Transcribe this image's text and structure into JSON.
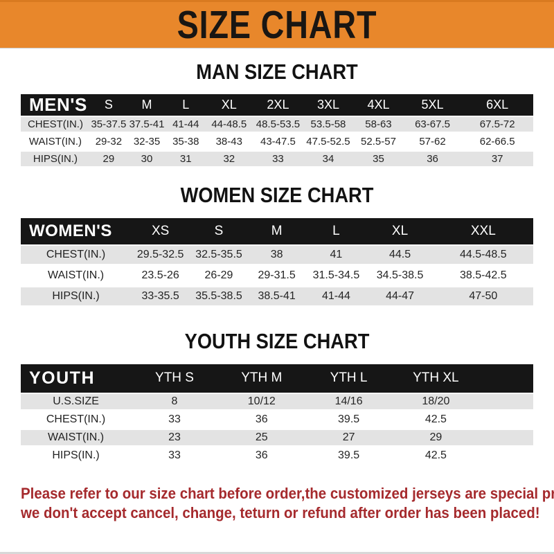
{
  "banner": {
    "title": "SIZE CHART"
  },
  "sections": [
    {
      "heading": "MAN SIZE CHART",
      "table": {
        "header": {
          "label": "MEN'S",
          "columns": [
            "S",
            "M",
            "L",
            "XL",
            "2XL",
            "3XL",
            "4XL",
            "5XL",
            "6XL"
          ]
        },
        "rows": [
          {
            "label": "CHEST(IN.)",
            "values": [
              "35-37.5",
              "37.5-41",
              "41-44",
              "44-48.5",
              "48.5-53.5",
              "53.5-58",
              "58-63",
              "63-67.5",
              "67.5-72"
            ]
          },
          {
            "label": "WAIST(IN.)",
            "values": [
              "29-32",
              "32-35",
              "35-38",
              "38-43",
              "43-47.5",
              "47.5-52.5",
              "52.5-57",
              "57-62",
              "62-66.5"
            ]
          },
          {
            "label": "HIPS(IN.)",
            "values": [
              "29",
              "30",
              "31",
              "32",
              "33",
              "34",
              "35",
              "36",
              "37"
            ]
          }
        ]
      }
    },
    {
      "heading": "WOMEN SIZE CHART",
      "table": {
        "header": {
          "label": "WOMEN'S",
          "columns": [
            "XS",
            "S",
            "M",
            "L",
            "XL",
            "XXL"
          ]
        },
        "rows": [
          {
            "label": "CHEST(IN.)",
            "values": [
              "29.5-32.5",
              "32.5-35.5",
              "38",
              "41",
              "44.5",
              "44.5-48.5"
            ]
          },
          {
            "label": "WAIST(IN.)",
            "values": [
              "23.5-26",
              "26-29",
              "29-31.5",
              "31.5-34.5",
              "34.5-38.5",
              "38.5-42.5"
            ]
          },
          {
            "label": "HIPS(IN.)",
            "values": [
              "33-35.5",
              "35.5-38.5",
              "38.5-41",
              "41-44",
              "44-47",
              "47-50"
            ]
          }
        ]
      }
    },
    {
      "heading": "YOUTH SIZE CHART",
      "table": {
        "header": {
          "label": "YOUTH",
          "columns": [
            "YTH S",
            "YTH M",
            "YTH L",
            "YTH XL"
          ]
        },
        "rows": [
          {
            "label": "U.S.SIZE",
            "values": [
              "8",
              "10/12",
              "14/16",
              "18/20"
            ]
          },
          {
            "label": "CHEST(IN.)",
            "values": [
              "33",
              "36",
              "39.5",
              "42.5"
            ]
          },
          {
            "label": "WAIST(IN.)",
            "values": [
              "23",
              "25",
              "27",
              "29"
            ]
          },
          {
            "label": "HIPS(IN.)",
            "values": [
              "33",
              "36",
              "39.5",
              "42.5"
            ]
          }
        ]
      }
    }
  ],
  "disclaimer": {
    "lines": [
      "Please refer to our size chart before order,the customized jerseys are special products,",
      "we don't accept cancel, change, teturn or refund after order has been placed!"
    ]
  },
  "colors": {
    "banner_bg": "#E8872B",
    "bar_bg": "#161616",
    "row_alt_bg": "#E3E3E3",
    "disclaimer_color": "#A52A2D"
  }
}
